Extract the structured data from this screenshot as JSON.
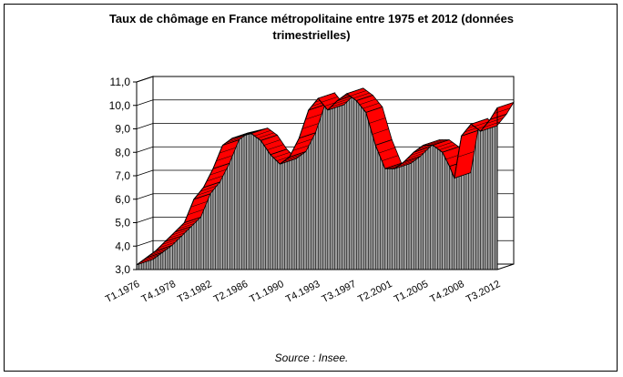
{
  "chart_data": {
    "type": "area",
    "style": "3d",
    "title_line1": "Taux de chômage en France métropolitaine entre 1975 et 2012 (données",
    "title_line2": "trimestrielles)",
    "source": "Source : Insee.",
    "ylim": [
      3.0,
      11.0
    ],
    "y_ticks": [
      "3,0",
      "4,0",
      "5,0",
      "6,0",
      "7,0",
      "8,0",
      "9,0",
      "10,0",
      "11,0"
    ],
    "x_tick_labels": [
      "T1.1976",
      "T4.1978",
      "T3.1982",
      "T2.1986",
      "T1.1990",
      "T4.1993",
      "T3.1997",
      "T2.2001",
      "T1.2005",
      "T4.2008",
      "T3.2012"
    ],
    "grid": true,
    "legend": "none",
    "colors": {
      "top": "#ff0000",
      "front": "#a0a0a0",
      "hatch": "#000000"
    },
    "x": [
      1975.0,
      1976.0,
      1977.0,
      1978.0,
      1979.0,
      1980.0,
      1981.0,
      1982.0,
      1983.0,
      1984.0,
      1985.0,
      1986.0,
      1987.0,
      1988.0,
      1989.0,
      1990.0,
      1991.0,
      1992.0,
      1993.0,
      1994.0,
      1995.0,
      1996.0,
      1997.0,
      1998.0,
      1999.0,
      2000.0,
      2001.0,
      2002.0,
      2003.0,
      2004.0,
      2005.0,
      2006.0,
      2007.0,
      2007.75,
      2008.25,
      2009.0,
      2010.0,
      2011.0,
      2012.0,
      2012.75
    ],
    "values": [
      3.2,
      3.5,
      3.8,
      4.2,
      4.6,
      5.0,
      6.0,
      6.5,
      7.3,
      8.3,
      8.6,
      8.7,
      8.8,
      8.5,
      7.9,
      7.5,
      7.8,
      8.6,
      9.8,
      10.3,
      9.8,
      10.2,
      10.5,
      10.2,
      9.7,
      8.3,
      7.3,
      7.3,
      7.6,
      8.0,
      8.3,
      8.3,
      8.0,
      7.4,
      6.9,
      8.7,
      9.2,
      8.9,
      9.4,
      9.9
    ]
  }
}
